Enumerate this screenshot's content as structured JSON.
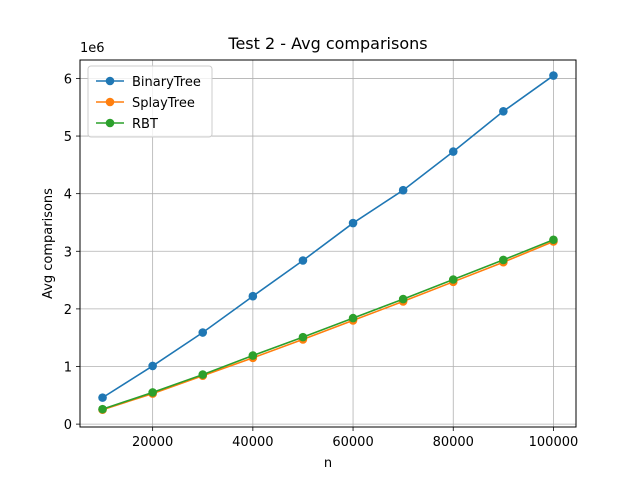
{
  "chart_data": {
    "type": "line",
    "title": "Test 2 - Avg comparisons",
    "xlabel": "n",
    "ylabel": "Avg comparisons",
    "y_offset_label": "1e6",
    "x": [
      10000,
      20000,
      30000,
      40000,
      50000,
      60000,
      70000,
      80000,
      90000,
      100000
    ],
    "xlim": [
      5500,
      104500
    ],
    "ylim": [
      -0.05,
      6.32
    ],
    "x_ticks": [
      20000,
      40000,
      60000,
      80000,
      100000
    ],
    "x_tick_labels": [
      "20000",
      "40000",
      "60000",
      "80000",
      "100000"
    ],
    "y_ticks": [
      0,
      1,
      2,
      3,
      4,
      5,
      6
    ],
    "y_tick_labels": [
      "0",
      "1",
      "2",
      "3",
      "4",
      "5",
      "6"
    ],
    "grid": true,
    "legend_position": "top-left",
    "series": [
      {
        "name": "BinaryTree",
        "color": "#1f77b4",
        "values": [
          0.46,
          1.01,
          1.59,
          2.22,
          2.84,
          3.49,
          4.06,
          4.73,
          5.43,
          6.05
        ]
      },
      {
        "name": "SplayTree",
        "color": "#ff7f0e",
        "values": [
          0.25,
          0.53,
          0.84,
          1.15,
          1.47,
          1.8,
          2.13,
          2.47,
          2.81,
          3.17
        ]
      },
      {
        "name": "RBT",
        "color": "#2ca02c",
        "values": [
          0.26,
          0.55,
          0.86,
          1.19,
          1.51,
          1.84,
          2.17,
          2.51,
          2.85,
          3.2
        ]
      }
    ]
  }
}
